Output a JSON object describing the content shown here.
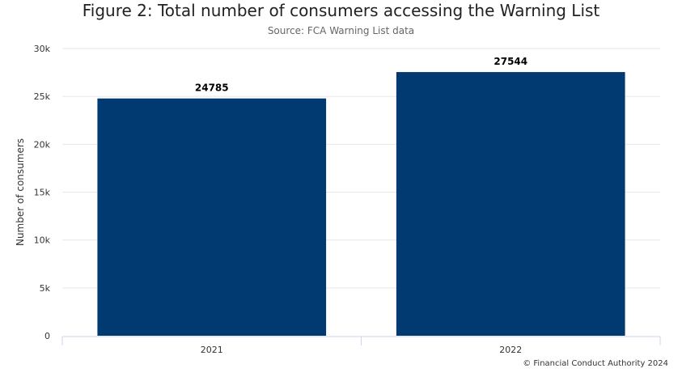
{
  "chart_data": {
    "type": "bar",
    "title": "Figure 2: Total number of consumers accessing the Warning List",
    "subtitle": "Source: FCA Warning List data",
    "categories": [
      "2021",
      "2022"
    ],
    "values": [
      24785,
      27544
    ],
    "xlabel": "",
    "ylabel": "Number of consumers",
    "ylim": [
      0,
      30000
    ],
    "yticks": [
      0,
      5000,
      10000,
      15000,
      20000,
      25000,
      30000
    ],
    "ytick_labels": [
      "0",
      "5k",
      "10k",
      "15k",
      "20k",
      "25k",
      "30k"
    ],
    "grid": true,
    "legend": "none",
    "bar_color": "#003a70",
    "data_labels": [
      "24785",
      "27544"
    ]
  },
  "credit": "© Financial Conduct Authority 2024"
}
